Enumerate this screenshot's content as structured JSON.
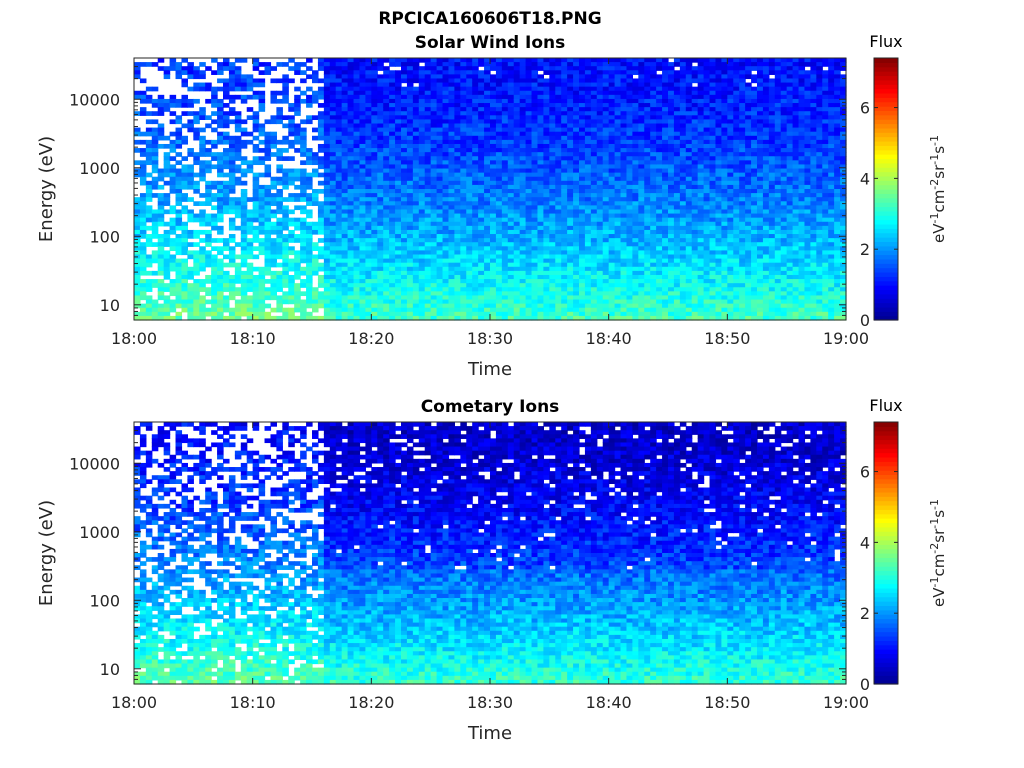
{
  "figure_title": "RPCICA160606T18.PNG",
  "colormap": [
    "#00008f",
    "#0000ff",
    "#0080ff",
    "#00ffff",
    "#80ff80",
    "#ffff00",
    "#ff8000",
    "#ff0000",
    "#800000"
  ],
  "chart_data": [
    {
      "type": "heatmap",
      "title": "Solar Wind Ions",
      "xlabel": "Time",
      "ylabel": "Energy (eV)",
      "x_ticks": [
        "18:00",
        "18:10",
        "18:20",
        "18:30",
        "18:40",
        "18:50",
        "19:00"
      ],
      "x_range": [
        "18:00",
        "19:00"
      ],
      "y_scale": "log",
      "y_ticks": [
        "10",
        "100",
        "1000",
        "10000"
      ],
      "y_range": [
        6,
        40000
      ],
      "colorbar": {
        "title": "Flux",
        "unit": "eV-1cm-2sr-1s-1",
        "ticks": [
          "0",
          "2",
          "4",
          "6"
        ],
        "range": [
          0,
          7.4
        ]
      },
      "description_values": {
        "background_flux_high_energy": 1.0,
        "background_flux_low_energy": 3.3,
        "sparse_region_end": "18:16"
      }
    },
    {
      "type": "heatmap",
      "title": "Cometary Ions",
      "xlabel": "Time",
      "ylabel": "Energy (eV)",
      "x_ticks": [
        "18:00",
        "18:10",
        "18:20",
        "18:30",
        "18:40",
        "18:50",
        "19:00"
      ],
      "x_range": [
        "18:00",
        "19:00"
      ],
      "y_scale": "log",
      "y_ticks": [
        "10",
        "100",
        "1000",
        "10000"
      ],
      "y_range": [
        6,
        40000
      ],
      "colorbar": {
        "title": "Flux",
        "unit": "eV-1cm-2sr-1s-1",
        "ticks": [
          "0",
          "2",
          "4",
          "6"
        ],
        "range": [
          0,
          7.4
        ]
      },
      "description_values": {
        "background_flux_high_energy": 0.7,
        "background_flux_low_energy": 3.2,
        "sparse_region_end": "18:16"
      }
    }
  ]
}
